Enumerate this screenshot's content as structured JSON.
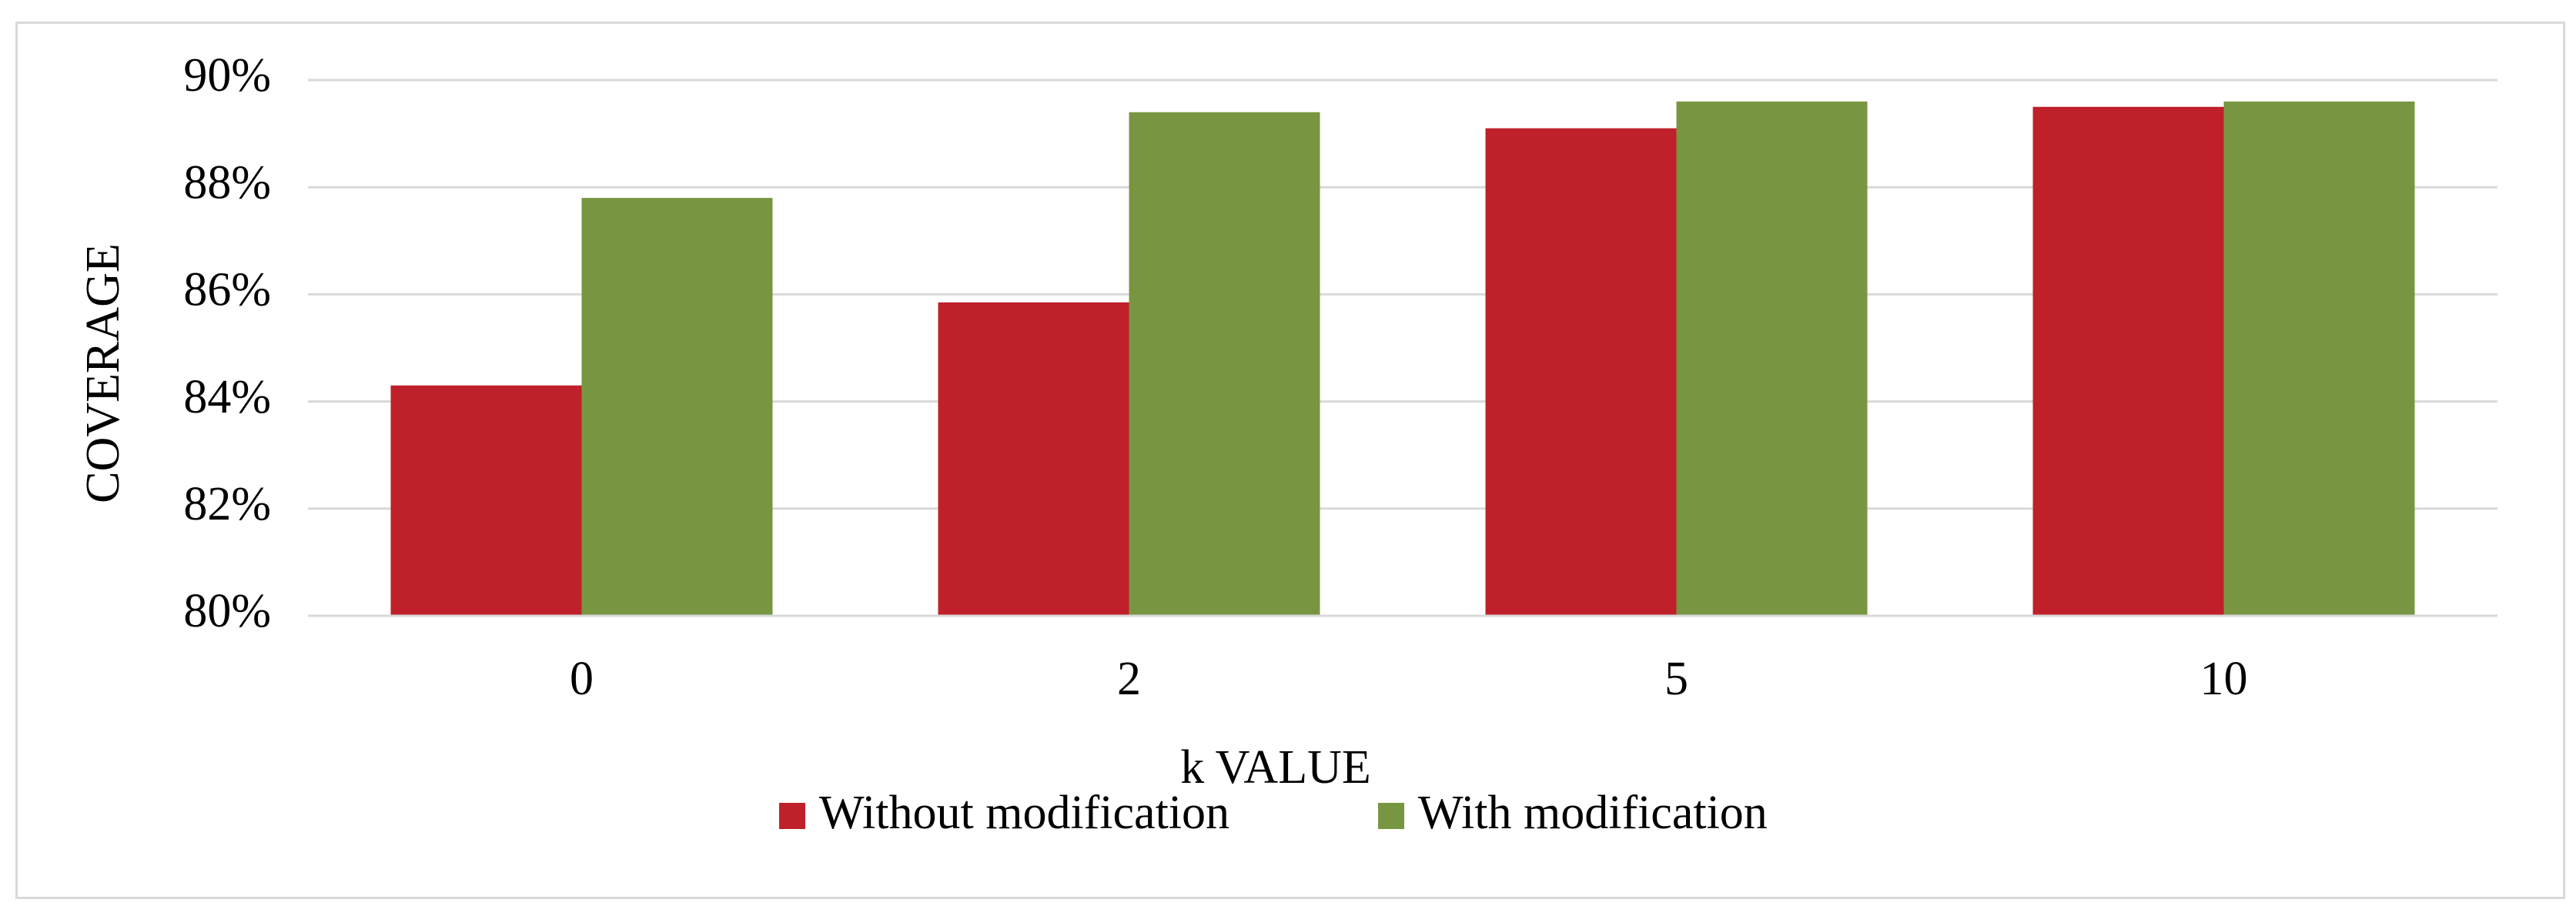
{
  "chart_data": {
    "type": "bar",
    "title": "",
    "xlabel": "k VALUE",
    "ylabel": "COVERAGE",
    "categories": [
      "0",
      "2",
      "5",
      "10"
    ],
    "series": [
      {
        "name": "Without modification",
        "color": "#c0202a",
        "values": [
          84.3,
          85.85,
          89.1,
          89.5
        ]
      },
      {
        "name": "With modification",
        "color": "#789641",
        "values": [
          87.8,
          89.4,
          89.6,
          89.6
        ]
      }
    ],
    "ylim": [
      80,
      90
    ],
    "yticks": [
      80,
      82,
      84,
      86,
      88,
      90
    ],
    "ytick_labels": [
      "80%",
      "82%",
      "84%",
      "86%",
      "88%",
      "90%"
    ],
    "grid": true,
    "gridline_color": "#d9d9d9",
    "legend_position": "bottom-center"
  }
}
